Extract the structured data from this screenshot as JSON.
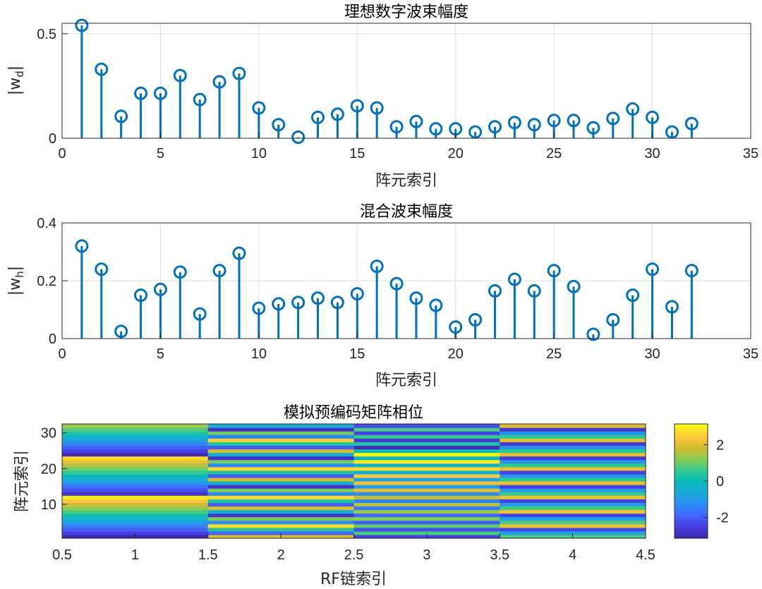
{
  "chart_data": [
    {
      "type": "stem",
      "title": "理想数字波束幅度",
      "xlabel": "阵元索引",
      "ylabel_base": "|w",
      "ylabel_sub": "d",
      "ylabel_close": "|",
      "xlim": [
        0,
        35
      ],
      "ylim": [
        0,
        0.55
      ],
      "xticks": [
        0,
        5,
        10,
        15,
        20,
        25,
        30,
        35
      ],
      "yticks": [
        0,
        0.5
      ],
      "ytick_labels": [
        "0",
        "0.5"
      ],
      "grid": true,
      "color": "#0072BD",
      "x": [
        1,
        2,
        3,
        4,
        5,
        6,
        7,
        8,
        9,
        10,
        11,
        12,
        13,
        14,
        15,
        16,
        17,
        18,
        19,
        20,
        21,
        22,
        23,
        24,
        25,
        26,
        27,
        28,
        29,
        30,
        31,
        32
      ],
      "values": [
        0.54,
        0.33,
        0.105,
        0.215,
        0.215,
        0.3,
        0.185,
        0.27,
        0.31,
        0.145,
        0.065,
        0.005,
        0.1,
        0.115,
        0.155,
        0.145,
        0.055,
        0.08,
        0.045,
        0.045,
        0.03,
        0.055,
        0.075,
        0.065,
        0.085,
        0.085,
        0.05,
        0.095,
        0.14,
        0.1,
        0.03,
        0.07
      ]
    },
    {
      "type": "stem",
      "title": "混合波束幅度",
      "xlabel": "阵元索引",
      "ylabel_base": "|w",
      "ylabel_sub": "h",
      "ylabel_close": "|",
      "xlim": [
        0,
        35
      ],
      "ylim": [
        0,
        0.4
      ],
      "xticks": [
        0,
        5,
        10,
        15,
        20,
        25,
        30,
        35
      ],
      "yticks": [
        0,
        0.2,
        0.4
      ],
      "ytick_labels": [
        "0",
        "0.2",
        "0.4"
      ],
      "grid": true,
      "color": "#0072BD",
      "x": [
        1,
        2,
        3,
        4,
        5,
        6,
        7,
        8,
        9,
        10,
        11,
        12,
        13,
        14,
        15,
        16,
        17,
        18,
        19,
        20,
        21,
        22,
        23,
        24,
        25,
        26,
        27,
        28,
        29,
        30,
        31,
        32
      ],
      "values": [
        0.32,
        0.24,
        0.025,
        0.15,
        0.17,
        0.23,
        0.085,
        0.235,
        0.295,
        0.105,
        0.12,
        0.125,
        0.14,
        0.125,
        0.155,
        0.25,
        0.19,
        0.14,
        0.115,
        0.04,
        0.065,
        0.165,
        0.205,
        0.165,
        0.235,
        0.18,
        0.015,
        0.065,
        0.15,
        0.24,
        0.11,
        0.235
      ]
    },
    {
      "type": "heatmap",
      "title": "模拟预编码矩阵相位",
      "xlabel": "RF链索引",
      "ylabel": "阵元索引",
      "xlim": [
        0.5,
        4.5
      ],
      "ylim": [
        0.5,
        32.5
      ],
      "xticks": [
        0.5,
        1,
        1.5,
        2,
        2.5,
        3,
        3.5,
        4,
        4.5
      ],
      "xtick_labels": [
        "0.5",
        "1",
        "1.5",
        "2",
        "2.5",
        "3",
        "3.5",
        "4",
        "4.5"
      ],
      "yticks": [
        10,
        20,
        30
      ],
      "colormap": "parula",
      "clim": [
        -3.14159,
        3.14159
      ],
      "colorbar_ticks": [
        -2,
        0,
        2
      ],
      "colorbar_tick_labels": [
        "-2",
        "0",
        "2"
      ],
      "phase_increment": [
        0.55,
        2.35,
        3.25,
        4.7
      ],
      "phase_offset": [
        3.2,
        2.0,
        -2.5,
        0.8
      ],
      "rows": 32
    }
  ]
}
